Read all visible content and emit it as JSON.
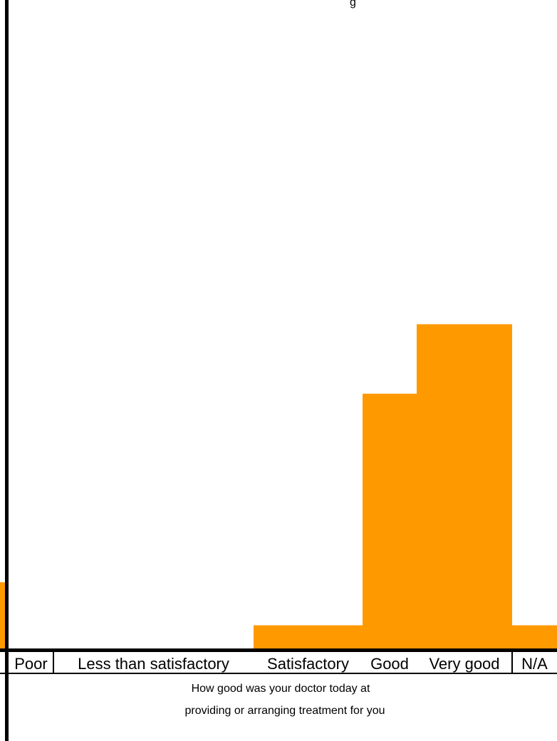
{
  "chart_data": {
    "type": "bar",
    "categories": [
      "Poor",
      "Less than satisfactory",
      "Satisfactory",
      "Good",
      "Very good",
      "N/A"
    ],
    "values": [
      0,
      0,
      1,
      11,
      14,
      1
    ],
    "ylim": [
      0,
      28
    ],
    "xlabel_lines": [
      "How good was your doctor today at",
      "providing or arranging treatment for you"
    ],
    "title_fragment": "g",
    "grid": false,
    "legend": "none",
    "bar_color": "#FF9900"
  }
}
